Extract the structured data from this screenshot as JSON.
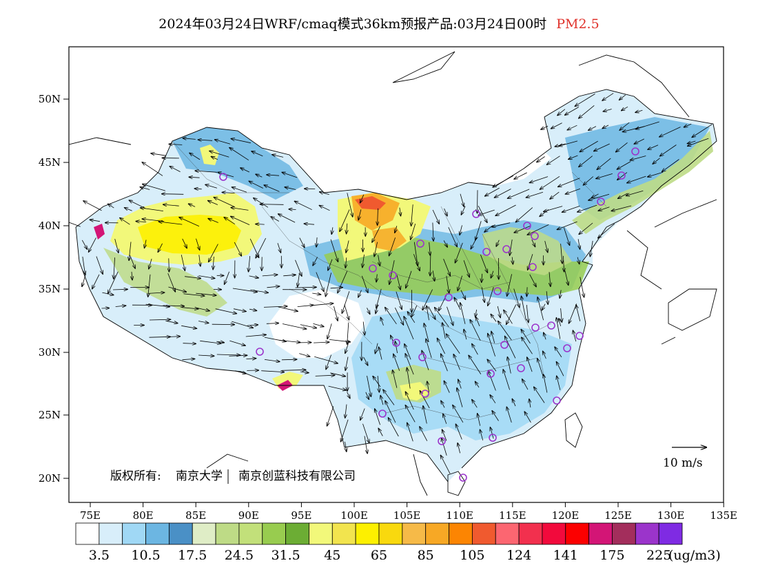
{
  "title": {
    "main": "2024年03月24日WRF/cmaq模式36km预报产品:03月24日00时",
    "species": "PM2.5",
    "species_color": "#e0332c"
  },
  "axes": {
    "lat_labels": [
      "50N",
      "45N",
      "40N",
      "35N",
      "30N",
      "25N",
      "20N"
    ],
    "lon_labels": [
      "75E",
      "80E",
      "85E",
      "90E",
      "95E",
      "100E",
      "105E",
      "110E",
      "115E",
      "120E",
      "125E",
      "130E",
      "135E"
    ]
  },
  "wind_legend": {
    "label": "10 m/s"
  },
  "copyright": {
    "prefix": "版权所有:",
    "org1": "南京大学",
    "org2": "南京创蓝科技有限公司"
  },
  "colorbar": {
    "colors": [
      "#ffffff",
      "#d8eefa",
      "#a0d8f5",
      "#6cb6e2",
      "#4a90c6",
      "#dfedc6",
      "#bedb86",
      "#c2e07a",
      "#98cc4f",
      "#6cad34",
      "#f2f87a",
      "#f2e44e",
      "#fdf000",
      "#f9d90e",
      "#f6ba48",
      "#f7a825",
      "#fc8502",
      "#f05a2f",
      "#fc6671",
      "#f2304e",
      "#f20a3c",
      "#fc0000",
      "#d31576",
      "#a32e5c",
      "#9b34cb",
      "#7f2be3"
    ],
    "labels": [
      "3.5",
      "10.5",
      "17.5",
      "24.5",
      "31.5",
      "45",
      "65",
      "85",
      "105",
      "124",
      "141",
      "175",
      "225"
    ],
    "unit": "(ug/m3)"
  },
  "map_colors": {
    "light_blue": "#d8eefa",
    "mid_blue": "#a0d8f5",
    "blue": "#6cb6e2",
    "pale_green": "#dfedc6",
    "green": "#98cc4f",
    "yellow": "#f2f87a",
    "bright_yellow": "#fdf000",
    "orange": "#f7a825",
    "red": "#f05a2f",
    "magenta": "#d31576",
    "site_marker": "#9b34cb"
  }
}
